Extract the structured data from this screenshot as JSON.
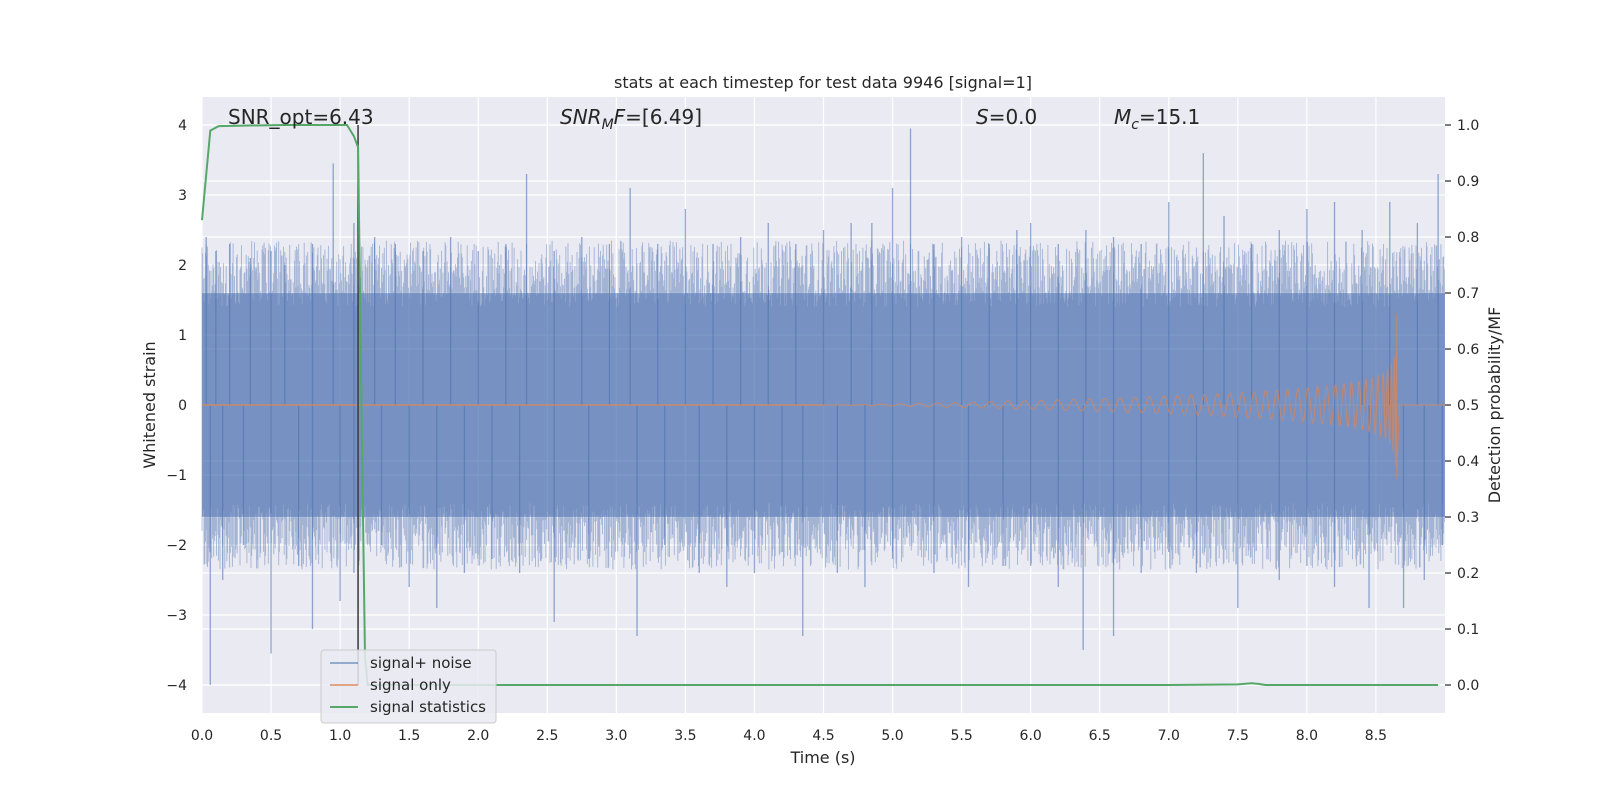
{
  "chart_data": {
    "type": "line",
    "title": "stats at each timestep for test data 9946 [signal=1]",
    "xlabel": "Time (s)",
    "ylabel": "Whitened strain",
    "y2label": "Detection probability/MF",
    "xlim": [
      0.0,
      9.0
    ],
    "ylim": [
      -4.4,
      4.4
    ],
    "y2lim": [
      -0.05,
      1.05
    ],
    "xticks": [
      "0.0",
      "0.5",
      "1.0",
      "1.5",
      "2.0",
      "2.5",
      "3.0",
      "3.5",
      "4.0",
      "4.5",
      "5.0",
      "5.5",
      "6.0",
      "6.5",
      "7.0",
      "7.5",
      "8.0",
      "8.5"
    ],
    "yticks": [
      "4",
      "3",
      "2",
      "1",
      "0",
      "−1",
      "−2",
      "−3",
      "−4"
    ],
    "y2ticks": [
      "1.0",
      "0.9",
      "0.8",
      "0.7",
      "0.6",
      "0.5",
      "0.4",
      "0.3",
      "0.2",
      "0.1",
      "0.0"
    ],
    "grid": true,
    "legend_position": "lower-left",
    "annotations": {
      "snr_opt": "SNR_opt=6.43",
      "snr_mf_main": "SNR",
      "snr_mf_sub": "M",
      "snr_mf_rest": "F",
      "snr_mf_value": "=[6.49]",
      "s_symbol": "S",
      "s_value": "=0.0",
      "mc_symbol": "M",
      "mc_sub": "c",
      "mc_value": "=15.1"
    },
    "marker_line_x": 1.13,
    "series": [
      {
        "name": "signal+ noise",
        "color": "#4c72b0",
        "axis": "left",
        "envelope": {
          "x": [
            0.0,
            9.0
          ],
          "band": [
            -1.6,
            1.6
          ],
          "peaks_up": [
            [
              0.03,
              2.4
            ],
            [
              0.1,
              2.2
            ],
            [
              0.2,
              2.3
            ],
            [
              0.35,
              2.1
            ],
            [
              0.5,
              2.2
            ],
            [
              0.6,
              2.0
            ],
            [
              0.8,
              2.3
            ],
            [
              0.95,
              3.45
            ],
            [
              1.1,
              2.6
            ],
            [
              1.25,
              2.4
            ],
            [
              1.4,
              2.3
            ],
            [
              1.6,
              2.2
            ],
            [
              1.8,
              2.4
            ],
            [
              2.0,
              2.2
            ],
            [
              2.2,
              2.3
            ],
            [
              2.35,
              3.3
            ],
            [
              2.55,
              2.2
            ],
            [
              2.75,
              2.4
            ],
            [
              2.95,
              2.3
            ],
            [
              3.1,
              3.1
            ],
            [
              3.3,
              2.3
            ],
            [
              3.5,
              2.8
            ],
            [
              3.7,
              2.3
            ],
            [
              3.9,
              2.4
            ],
            [
              4.1,
              2.6
            ],
            [
              4.3,
              2.3
            ],
            [
              4.5,
              2.5
            ],
            [
              4.7,
              2.6
            ],
            [
              4.85,
              2.6
            ],
            [
              5.0,
              3.1
            ],
            [
              5.13,
              3.95
            ],
            [
              5.3,
              2.3
            ],
            [
              5.5,
              2.4
            ],
            [
              5.7,
              2.3
            ],
            [
              5.9,
              2.5
            ],
            [
              6.0,
              2.6
            ],
            [
              6.2,
              2.3
            ],
            [
              6.4,
              2.5
            ],
            [
              6.6,
              2.4
            ],
            [
              6.8,
              2.3
            ],
            [
              7.0,
              2.9
            ],
            [
              7.25,
              3.6
            ],
            [
              7.4,
              2.7
            ],
            [
              7.6,
              2.3
            ],
            [
              7.8,
              2.5
            ],
            [
              8.0,
              2.8
            ],
            [
              8.2,
              2.9
            ],
            [
              8.4,
              2.5
            ],
            [
              8.6,
              2.9
            ],
            [
              8.8,
              2.6
            ],
            [
              8.95,
              3.3
            ]
          ],
          "peaks_down": [
            [
              0.06,
              -4.0
            ],
            [
              0.15,
              -2.5
            ],
            [
              0.3,
              -2.0
            ],
            [
              0.5,
              -3.55
            ],
            [
              0.7,
              -2.3
            ],
            [
              0.8,
              -3.2
            ],
            [
              1.0,
              -2.8
            ],
            [
              1.1,
              -2.4
            ],
            [
              1.3,
              -2.0
            ],
            [
              1.5,
              -2.6
            ],
            [
              1.7,
              -2.9
            ],
            [
              1.9,
              -2.4
            ],
            [
              2.1,
              -2.2
            ],
            [
              2.3,
              -2.4
            ],
            [
              2.55,
              -3.1
            ],
            [
              2.8,
              -2.2
            ],
            [
              3.15,
              -3.3
            ],
            [
              3.35,
              -2.0
            ],
            [
              3.6,
              -2.4
            ],
            [
              3.8,
              -2.6
            ],
            [
              4.0,
              -2.4
            ],
            [
              4.2,
              -2.1
            ],
            [
              4.35,
              -3.3
            ],
            [
              4.6,
              -2.4
            ],
            [
              4.8,
              -2.6
            ],
            [
              5.0,
              -2.2
            ],
            [
              5.3,
              -2.4
            ],
            [
              5.55,
              -2.6
            ],
            [
              5.8,
              -2.3
            ],
            [
              6.0,
              -2.3
            ],
            [
              6.2,
              -2.6
            ],
            [
              6.38,
              -3.5
            ],
            [
              6.6,
              -3.3
            ],
            [
              6.8,
              -2.4
            ],
            [
              7.0,
              -2.1
            ],
            [
              7.2,
              -2.4
            ],
            [
              7.5,
              -2.9
            ],
            [
              7.8,
              -2.5
            ],
            [
              8.0,
              -2.3
            ],
            [
              8.2,
              -2.6
            ],
            [
              8.45,
              -2.9
            ],
            [
              8.7,
              -2.9
            ],
            [
              8.85,
              -2.5
            ],
            [
              8.98,
              -2.0
            ]
          ]
        }
      },
      {
        "name": "signal only",
        "color": "#dd8452",
        "axis": "left",
        "chirp": {
          "start_x": 4.5,
          "end_x": 8.65,
          "peak_amplitude": 1.3,
          "trough_amplitude": -1.05
        }
      },
      {
        "name": "signal statistics",
        "color": "#55a868",
        "axis": "right",
        "x": [
          0.0,
          0.06,
          0.12,
          0.3,
          0.6,
          0.9,
          1.0,
          1.05,
          1.1,
          1.13,
          1.16,
          1.18,
          1.2,
          1.3,
          2.0,
          3.0,
          4.0,
          5.0,
          6.0,
          7.0,
          7.5,
          7.6,
          7.65,
          7.7,
          8.0,
          8.5,
          8.95
        ],
        "values": [
          0.83,
          0.99,
          0.998,
          0.999,
          1.0,
          1.0,
          1.0,
          1.0,
          0.98,
          0.96,
          0.4,
          0.05,
          0.0,
          0.0,
          0.0,
          0.0,
          0.0,
          0.0,
          0.0,
          0.0,
          0.001,
          0.003,
          0.002,
          0.0,
          0.0,
          0.0,
          0.0
        ]
      }
    ]
  }
}
